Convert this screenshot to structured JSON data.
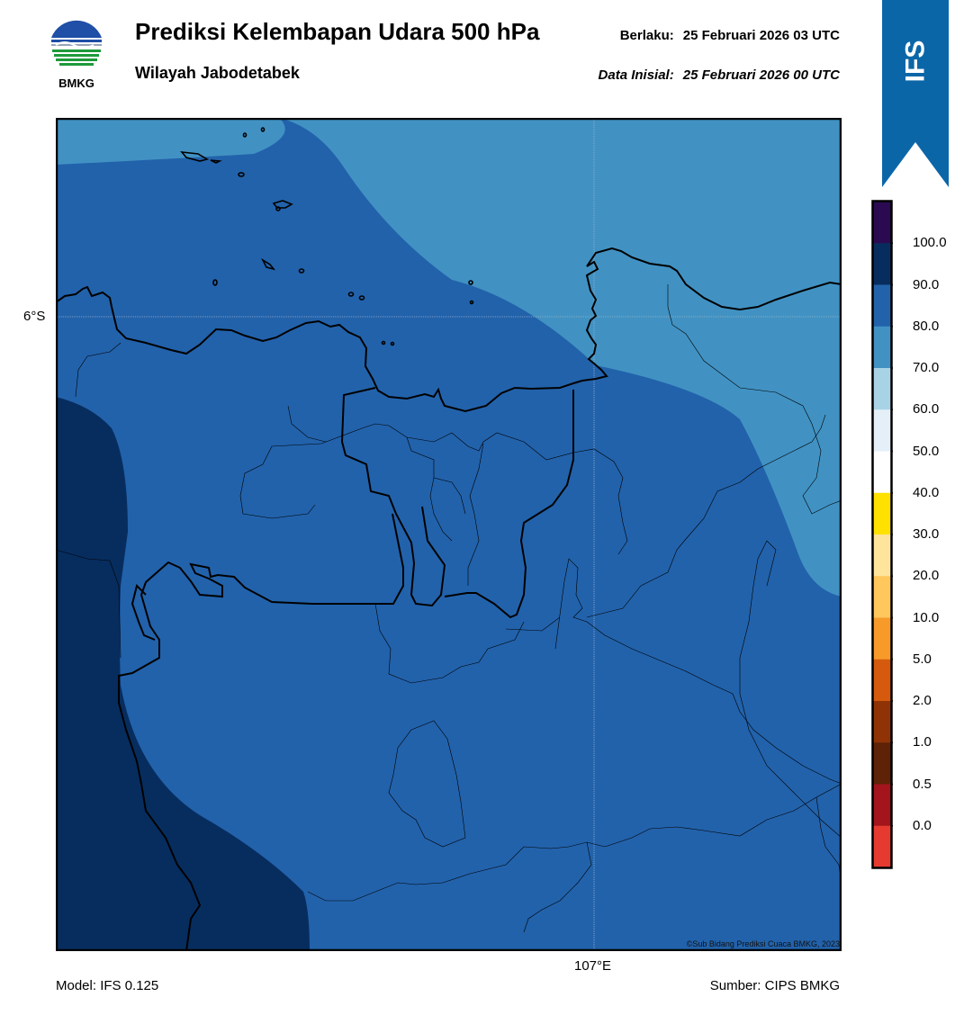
{
  "header": {
    "title": "Prediksi Kelembapan Udara 500 hPa",
    "subtitle": "Wilayah Jabodetabek",
    "valid_label": "Berlaku:",
    "valid_time": "25 Februari 2026 03 UTC",
    "init_label": "Data Inisial:",
    "init_time": "25 Februari 2026 00 UTC"
  },
  "logo": {
    "text": "BMKG",
    "icon": "bmkg-logo-icon"
  },
  "ribbon": {
    "text": "IFS",
    "color": "#0b66a8"
  },
  "map": {
    "lat_label": "6°S",
    "lon_label": "107°E",
    "credit": "©Sub Bidang Prediksi Cuaca BMKG, 2023",
    "fill_colors": {
      "70_80": "#4192c3",
      "80_90": "#2262ab",
      "90_100": "#072d5f"
    }
  },
  "colorbar": {
    "labels": [
      "100.0",
      "90.0",
      "80.0",
      "70.0",
      "60.0",
      "50.0",
      "40.0",
      "30.0",
      "20.0",
      "10.0",
      "5.0",
      "2.0",
      "1.0",
      "0.5",
      "0.0"
    ],
    "colors": [
      "#2b0a52",
      "#072d5f",
      "#2262ab",
      "#4192c3",
      "#a8d3e7",
      "#e4eff8",
      "#ffffff",
      "#ffe100",
      "#ffe49c",
      "#ffc75c",
      "#f79a2a",
      "#d55a0d",
      "#8f3306",
      "#5e2207",
      "#a3141c",
      "#e63a31"
    ]
  },
  "footer": {
    "model": "Model: IFS 0.125",
    "source": "Sumber: CIPS BMKG"
  }
}
